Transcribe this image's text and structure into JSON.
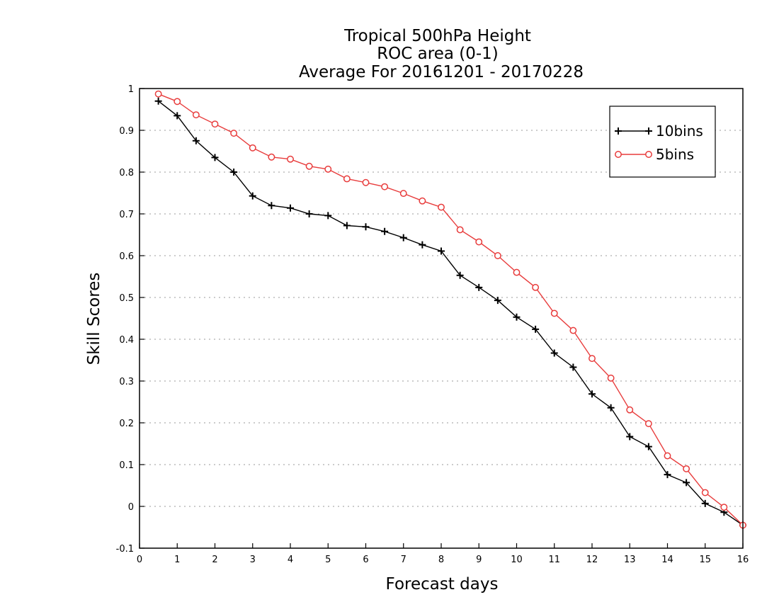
{
  "chart_data": {
    "type": "line",
    "title": [
      "Tropical 500hPa Height",
      "ROC area (0-1)",
      "Average For 20161201 - 20170228"
    ],
    "xlabel": "Forecast days",
    "ylabel": "Skill Scores",
    "xlim": [
      0,
      16
    ],
    "ylim": [
      -0.1,
      1
    ],
    "x_ticks": [
      0,
      1,
      2,
      3,
      4,
      5,
      6,
      7,
      8,
      9,
      10,
      11,
      12,
      13,
      14,
      15,
      16
    ],
    "y_ticks": [
      -0.1,
      0,
      0.1,
      0.2,
      0.3,
      0.4,
      0.5,
      0.6,
      0.7,
      0.8,
      0.9,
      1
    ],
    "y_tick_labels": [
      "-0.1",
      "0",
      "0.1",
      "0.2",
      "0.3",
      "0.4",
      "0.5",
      "0.6",
      "0.7",
      "0.8",
      "0.9",
      "1"
    ],
    "grid": "horizontal-dotted",
    "legend_position": "top-right",
    "x": [
      0.5,
      1.0,
      1.5,
      2.0,
      2.5,
      3.0,
      3.5,
      4.0,
      4.5,
      5.0,
      5.5,
      6.0,
      6.5,
      7.0,
      7.5,
      8.0,
      8.5,
      9.0,
      9.5,
      10.0,
      10.5,
      11.0,
      11.5,
      12.0,
      12.5,
      13.0,
      13.5,
      14.0,
      14.5,
      15.0,
      15.5,
      16.0
    ],
    "series": [
      {
        "name": "10bins",
        "color": "#000000",
        "marker": "plus",
        "values": [
          0.97,
          0.935,
          0.875,
          0.835,
          0.8,
          0.743,
          0.72,
          0.714,
          0.7,
          0.696,
          0.672,
          0.669,
          0.658,
          0.643,
          0.626,
          0.611,
          0.553,
          0.524,
          0.493,
          0.453,
          0.424,
          0.367,
          0.333,
          0.269,
          0.236,
          0.167,
          0.143,
          0.076,
          0.057,
          0.007,
          -0.014,
          -0.045
        ]
      },
      {
        "name": "5bins",
        "color": "#e83c3c",
        "marker": "circle",
        "values": [
          0.987,
          0.969,
          0.937,
          0.915,
          0.893,
          0.858,
          0.836,
          0.831,
          0.814,
          0.807,
          0.784,
          0.775,
          0.765,
          0.749,
          0.731,
          0.716,
          0.662,
          0.633,
          0.6,
          0.56,
          0.524,
          0.462,
          0.421,
          0.354,
          0.307,
          0.231,
          0.198,
          0.121,
          0.09,
          0.033,
          -0.002,
          -0.045
        ]
      }
    ]
  }
}
